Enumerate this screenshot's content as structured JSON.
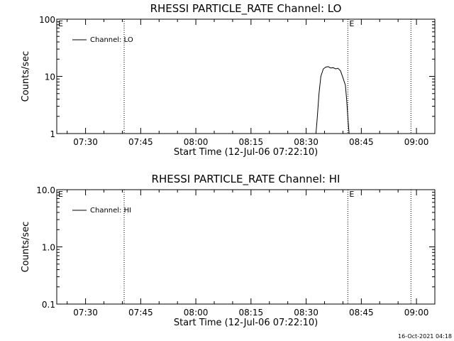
{
  "chart_data": [
    {
      "type": "line",
      "title": "RHESSI PARTICLE_RATE Channel: LO",
      "xlabel": "Start Time (12-Jul-06 07:22:10)",
      "ylabel": "Counts/sec",
      "xlim": [
        "07:22:10",
        "09:05:00"
      ],
      "ylim": [
        1,
        100
      ],
      "yscale": "log",
      "xtick_labels": [
        "07:30",
        "07:45",
        "08:00",
        "08:15",
        "08:30",
        "08:45",
        "09:00"
      ],
      "ytick_values": [
        1,
        10,
        100
      ],
      "ytick_labels": [
        "1",
        "10",
        "100"
      ],
      "legend": "top-left",
      "series": [
        {
          "name": "Channel: LO",
          "x": [
            "08:32:40",
            "08:33:00",
            "08:33:30",
            "08:34:00",
            "08:34:40",
            "08:35:20",
            "08:36:00",
            "08:36:40",
            "08:37:20",
            "08:38:00",
            "08:38:40",
            "08:39:20",
            "08:40:00",
            "08:40:40",
            "08:41:00",
            "08:41:20",
            "08:41:40"
          ],
          "y": [
            1.0,
            1.8,
            5.0,
            10.0,
            13.5,
            14.5,
            14.8,
            14.0,
            14.2,
            13.5,
            13.8,
            12.5,
            9.5,
            7.0,
            4.0,
            2.0,
            1.0
          ]
        }
      ],
      "markers": [
        {
          "x": "07:40:30",
          "label": ""
        },
        {
          "x": "08:41:20",
          "label": "E"
        },
        {
          "x": "08:58:30",
          "label": ""
        }
      ],
      "left_flag": "E"
    },
    {
      "type": "line",
      "title": "RHESSI PARTICLE_RATE Channel: HI",
      "xlabel": "Start Time (12-Jul-06 07:22:10)",
      "ylabel": "Counts/sec",
      "xlim": [
        "07:22:10",
        "09:05:00"
      ],
      "ylim": [
        0.1,
        10
      ],
      "yscale": "log",
      "xtick_labels": [
        "07:30",
        "07:45",
        "08:00",
        "08:15",
        "08:30",
        "08:45",
        "09:00"
      ],
      "ytick_values": [
        0.1,
        1,
        10
      ],
      "ytick_labels": [
        "0.1",
        "1.0",
        "10.0"
      ],
      "legend": "top-left",
      "series": [
        {
          "name": "Channel: HI",
          "x": [],
          "y": []
        }
      ],
      "markers": [
        {
          "x": "07:40:30",
          "label": ""
        },
        {
          "x": "08:41:20",
          "label": "E"
        },
        {
          "x": "08:58:30",
          "label": ""
        }
      ],
      "left_flag": "E"
    }
  ],
  "timestamp": "16-Oct-2021 04:18"
}
